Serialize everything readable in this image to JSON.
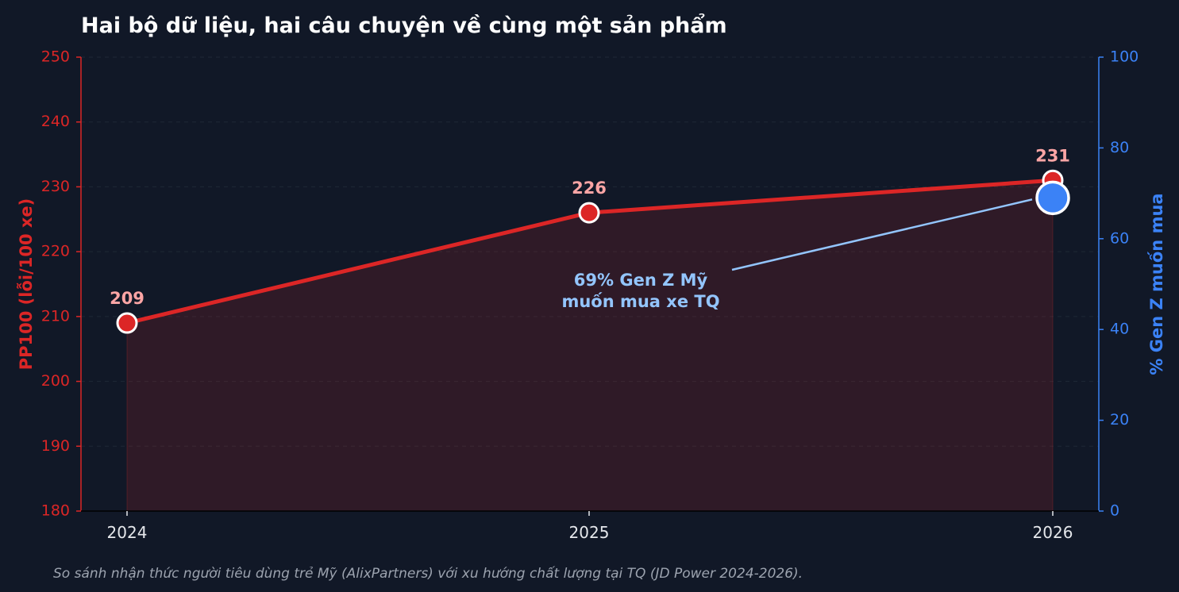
{
  "chart_data": {
    "type": "line",
    "title": "Hai bộ dữ liệu, hai câu chuyện về cùng một sản phẩm",
    "footnote": "So sánh nhận thức người tiêu dùng trẻ Mỹ (AlixPartners) với xu hướng chất lượng tại TQ (JD Power 2024-2026).",
    "x": [
      "2024",
      "2025",
      "2026"
    ],
    "y_left": {
      "label": "PP100 (lỗi/100 xe)",
      "range": [
        180,
        250
      ],
      "ticks": [
        "180",
        "190",
        "200",
        "210",
        "220",
        "230",
        "240",
        "250"
      ],
      "color": "#dc2626"
    },
    "y_right": {
      "label": "% Gen Z muốn mua",
      "range": [
        0,
        100
      ],
      "ticks": [
        "0",
        "20",
        "40",
        "60",
        "80",
        "100"
      ],
      "color": "#3b82f6"
    },
    "series": [
      {
        "axis": "left",
        "color": "#dc2626",
        "fill": true,
        "values": [
          209,
          226,
          231
        ],
        "labels": [
          "209",
          "226",
          "231"
        ]
      },
      {
        "axis": "right",
        "color": "#3b82f6",
        "x": "2026",
        "value": 69
      }
    ],
    "annotation": {
      "lines": [
        "69% Gen Z Mỹ",
        "muốn mua xe TQ"
      ],
      "target_x": "2026",
      "target_value": 69,
      "color": "#93c5fd"
    },
    "grid": true
  }
}
